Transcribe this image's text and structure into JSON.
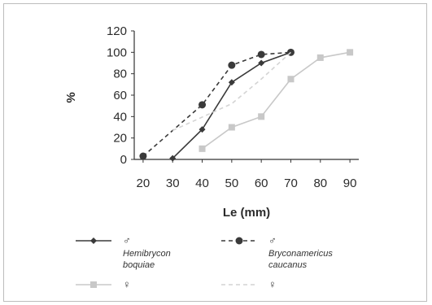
{
  "chart_data": {
    "type": "line",
    "ylabel": "%",
    "xlabel": "Le (mm)",
    "x_ticks": [
      "20",
      "30",
      "40",
      "50",
      "60",
      "70",
      "80",
      "90"
    ],
    "y_ticks": [
      "0",
      "20",
      "40",
      "60",
      "80",
      "100",
      "120"
    ],
    "xlim": [
      17,
      93
    ],
    "ylim": [
      0,
      120
    ],
    "grid": false,
    "legend_position": "bottom",
    "series": [
      {
        "name": "♂ Hemibrycon boquiae",
        "sym": "♂",
        "label_line1": "Hemibrycon",
        "label_line2": "boquiae",
        "color": "#3a3a3a",
        "dash": "solid",
        "marker": "diamond",
        "x": [
          30,
          40,
          50,
          60,
          70
        ],
        "y": [
          1,
          28,
          72,
          90,
          100
        ]
      },
      {
        "name": "♂ Bryconamericus caucanus",
        "sym": "♂",
        "label_line1": "Bryconamericus",
        "label_line2": "caucanus",
        "color": "#3a3a3a",
        "dash": "dashed",
        "marker": "circle",
        "x": [
          20,
          40,
          50,
          60,
          70
        ],
        "y": [
          3,
          51,
          88,
          98,
          100
        ]
      },
      {
        "name": "♀",
        "sym": "♀",
        "color": "#c8c8c8",
        "dash": "solid",
        "marker": "square",
        "x": [
          40,
          50,
          60,
          70,
          80,
          90
        ],
        "y": [
          10,
          30,
          40,
          75,
          95,
          100
        ]
      },
      {
        "name": "♀",
        "sym": "♀",
        "color": "#d4d4d4",
        "dash": "dashed",
        "marker": "none",
        "x": [
          30,
          50,
          60,
          70
        ],
        "y": [
          27,
          52,
          75,
          100
        ]
      }
    ]
  }
}
